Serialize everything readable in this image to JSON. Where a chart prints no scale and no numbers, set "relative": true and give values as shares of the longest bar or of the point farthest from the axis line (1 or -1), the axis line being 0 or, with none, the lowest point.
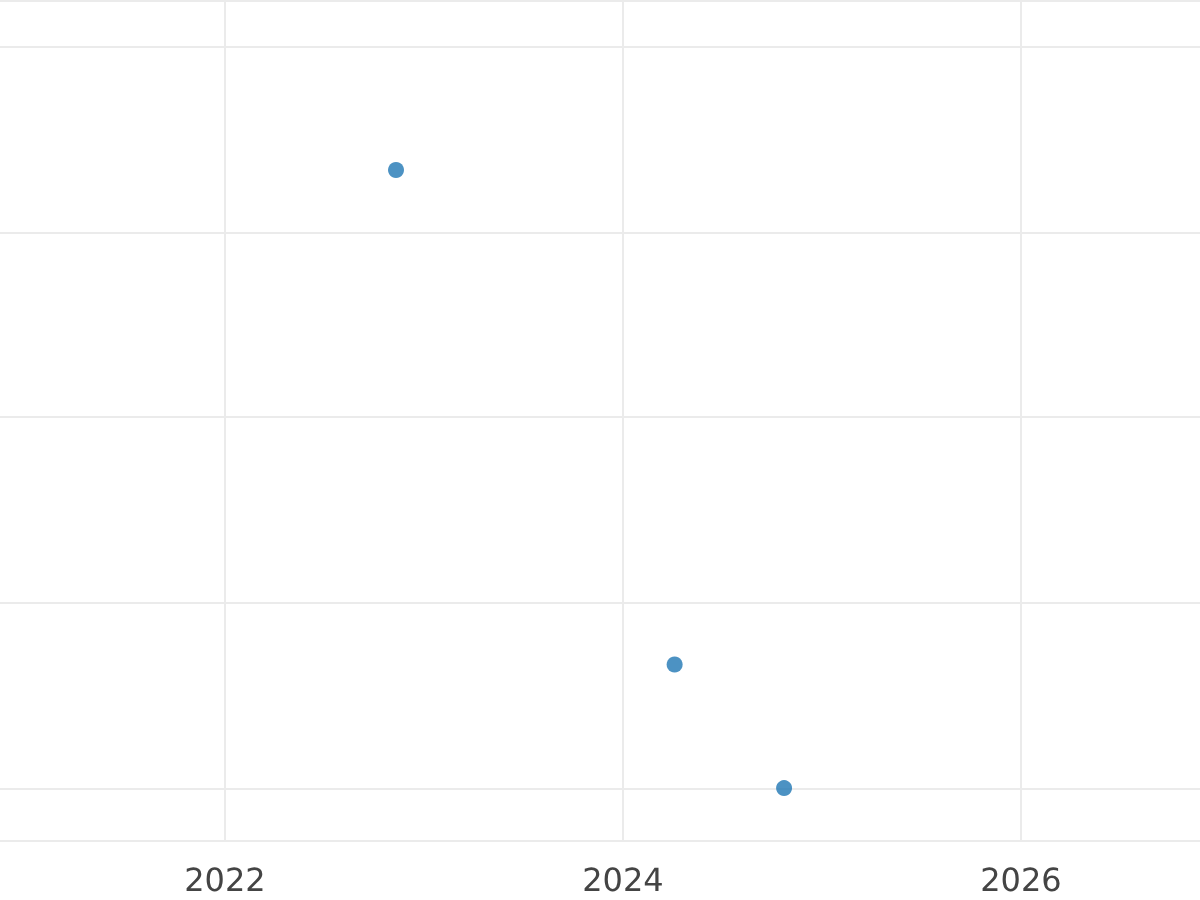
{
  "chart_data": {
    "type": "scatter",
    "relative": true,
    "x": [
      2022.86,
      2024.26,
      2024.81
    ],
    "series": [
      {
        "color": "#1f77b4",
        "values": [
          1,
          0.2,
          0
        ]
      }
    ],
    "xlim": [
      2020.87,
      2026.9
    ],
    "xticks": [
      2022,
      2024,
      2026
    ],
    "grid": true,
    "marker": "circle"
  }
}
